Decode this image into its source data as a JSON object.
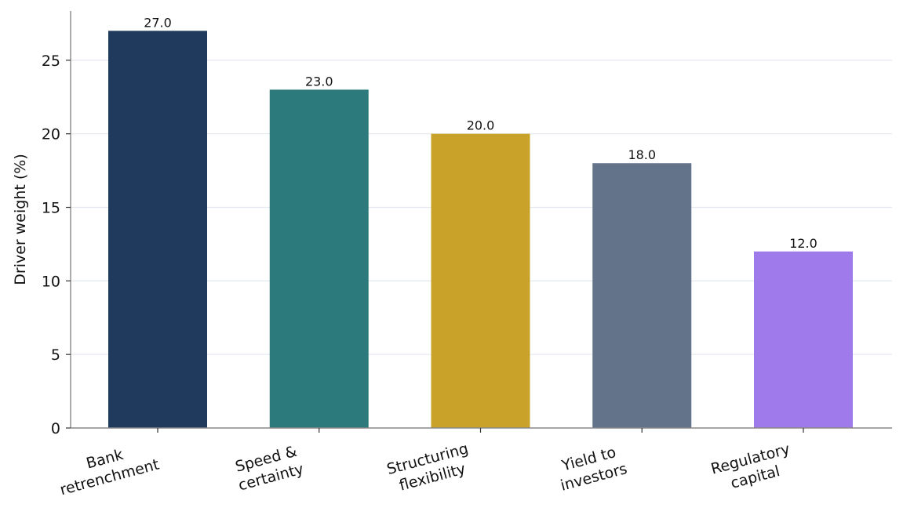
{
  "chart_data": {
    "type": "bar",
    "categories": [
      [
        "Bank",
        "retrenchment"
      ],
      [
        "Speed &",
        "certainty"
      ],
      [
        "Structuring",
        "flexibility"
      ],
      [
        "Yield to",
        "investors"
      ],
      [
        "Regulatory",
        "capital"
      ]
    ],
    "values": [
      27.0,
      23.0,
      20.0,
      18.0,
      12.0
    ],
    "value_labels": [
      "27.0",
      "23.0",
      "20.0",
      "18.0",
      "12.0"
    ],
    "colors": [
      "#1f3a5c",
      "#2c7a7b",
      "#c9a22a",
      "#637389",
      "#9f7aea"
    ],
    "title": "",
    "xlabel": "",
    "ylabel": "Driver weight (%)",
    "ylim": [
      0,
      28.35
    ],
    "yticks": [
      0,
      5,
      10,
      15,
      20,
      25
    ],
    "grid": "horizontal",
    "legend": "none",
    "category_label_rotation_deg": -15
  }
}
